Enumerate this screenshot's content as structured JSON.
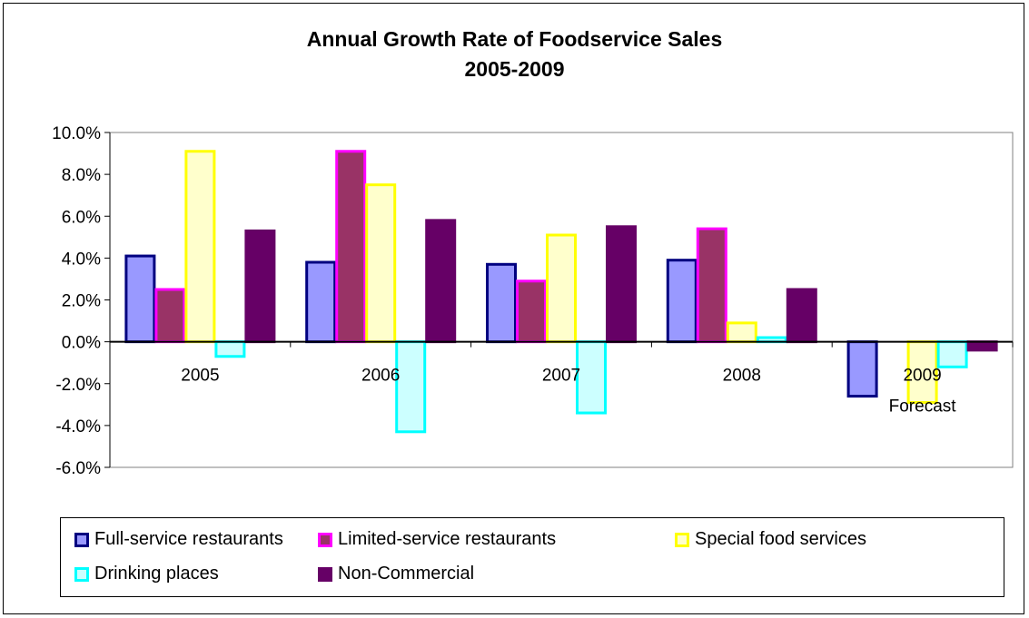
{
  "chart_data": {
    "type": "bar",
    "title": "Annual Growth Rate of Foodservice Sales",
    "subtitle": "2005-2009",
    "categories": [
      "2005",
      "2006",
      "2007",
      "2008",
      "2009"
    ],
    "category_sublabels": [
      "",
      "",
      "",
      "",
      "Forecast"
    ],
    "ylim": [
      -6,
      10
    ],
    "yticks": [
      "10.0%",
      "8.0%",
      "6.0%",
      "4.0%",
      "2.0%",
      "0.0%",
      "-2.0%",
      "-4.0%",
      "-6.0%"
    ],
    "grid": false,
    "legend_position": "bottom",
    "series": [
      {
        "name": "Full-service restaurants",
        "fill": "#9999ff",
        "stroke": "#000080",
        "values": [
          4.1,
          3.8,
          3.7,
          3.9,
          -2.6
        ]
      },
      {
        "name": "Limited-service restaurants",
        "fill": "#993366",
        "stroke": "#ff00ff",
        "values": [
          2.5,
          9.1,
          2.9,
          5.4,
          0.0
        ]
      },
      {
        "name": "Special food services",
        "fill": "#ffffcc",
        "stroke": "#ffff00",
        "values": [
          9.1,
          7.5,
          5.1,
          0.9,
          -2.9
        ]
      },
      {
        "name": "Drinking places",
        "fill": "#ccffff",
        "stroke": "#00ffff",
        "values": [
          -0.7,
          -4.3,
          -3.4,
          0.2,
          -1.2
        ]
      },
      {
        "name": "Non-Commercial",
        "fill": "#660066",
        "stroke": "#660066",
        "values": [
          5.3,
          5.8,
          5.5,
          2.5,
          -0.4
        ]
      }
    ]
  }
}
